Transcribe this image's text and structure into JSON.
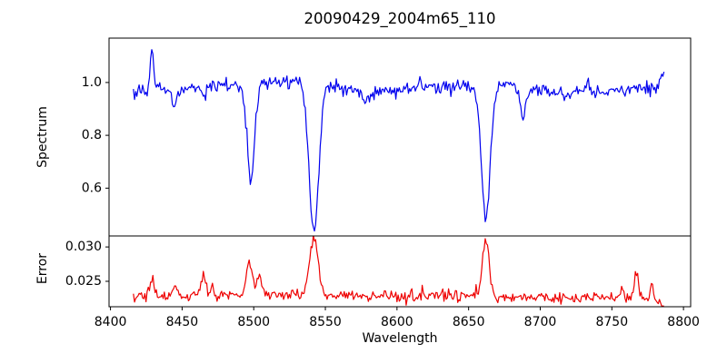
{
  "figure": {
    "title": "20090429_2004m65_110",
    "background": "#ffffff",
    "text_color": "#000000",
    "spine_color": "#000000"
  },
  "axis_x": {
    "label": "Wavelength",
    "min": 8399,
    "max": 8805,
    "ticks": [
      8400,
      8450,
      8500,
      8550,
      8600,
      8650,
      8700,
      8750,
      8800
    ],
    "tick_labels": [
      "8400",
      "8450",
      "8500",
      "8550",
      "8600",
      "8650",
      "8700",
      "8750",
      "8800"
    ]
  },
  "chart_data": [
    {
      "type": "line",
      "name": "spectrum",
      "ylabel": "Spectrum",
      "color": "#0000ee",
      "ylim": [
        0.419,
        1.168
      ],
      "yticks": [
        0.6,
        0.8,
        1.0
      ],
      "ytick_labels": [
        "0.6",
        "0.8",
        "1.0"
      ],
      "x_start": 8416,
      "x_end": 8787,
      "x_step": 0.8,
      "noise_sigma": 0.013,
      "seed": 7,
      "continuum": [
        [
          8416,
          0.968
        ],
        [
          8435,
          0.972
        ],
        [
          8460,
          0.978
        ],
        [
          8490,
          0.985
        ],
        [
          8515,
          1.0
        ],
        [
          8530,
          1.005
        ],
        [
          8555,
          0.985
        ],
        [
          8580,
          0.962
        ],
        [
          8605,
          0.975
        ],
        [
          8640,
          0.983
        ],
        [
          8665,
          0.985
        ],
        [
          8690,
          0.975
        ],
        [
          8715,
          0.962
        ],
        [
          8740,
          0.962
        ],
        [
          8765,
          0.97
        ],
        [
          8787,
          0.98
        ]
      ],
      "features": [
        {
          "center": 8429,
          "amp": 0.16,
          "width": 1.2
        },
        {
          "center": 8445,
          "amp": -0.065,
          "width": 1.5
        },
        {
          "center": 8465,
          "amp": -0.032,
          "width": 1.5
        },
        {
          "center": 8498,
          "amp": -0.345,
          "width": 2.6
        },
        {
          "center": 8542,
          "amp": -0.55,
          "width": 3.4
        },
        {
          "center": 8578,
          "amp": -0.035,
          "width": 2.0
        },
        {
          "center": 8616,
          "amp": 0.04,
          "width": 1.0
        },
        {
          "center": 8662,
          "amp": -0.5,
          "width": 3.0
        },
        {
          "center": 8688,
          "amp": -0.105,
          "width": 2.0
        },
        {
          "center": 8733,
          "amp": 0.05,
          "width": 1.0
        },
        {
          "center": 8785,
          "amp": 0.06,
          "width": 1.2
        }
      ]
    },
    {
      "type": "line",
      "name": "error",
      "ylabel": "Error",
      "color": "#ee0000",
      "ylim": [
        0.0213,
        0.0316
      ],
      "yticks": [
        0.025,
        0.03
      ],
      "ytick_labels": [
        "0.025",
        "0.030"
      ],
      "x_start": 8416,
      "x_end": 8787,
      "x_step": 0.8,
      "noise_sigma": 0.00042,
      "seed": 13,
      "continuum": [
        [
          8416,
          0.0228
        ],
        [
          8460,
          0.0229
        ],
        [
          8500,
          0.0231
        ],
        [
          8540,
          0.0231
        ],
        [
          8580,
          0.0229
        ],
        [
          8620,
          0.023
        ],
        [
          8660,
          0.0229
        ],
        [
          8700,
          0.0226
        ],
        [
          8740,
          0.0226
        ],
        [
          8770,
          0.0228
        ],
        [
          8787,
          0.0218
        ]
      ],
      "features": [
        {
          "center": 8429,
          "amp": 0.0024,
          "width": 1.5
        },
        {
          "center": 8445,
          "amp": 0.0018,
          "width": 1.5
        },
        {
          "center": 8465,
          "amp": 0.0032,
          "width": 1.5
        },
        {
          "center": 8471,
          "amp": 0.0015,
          "width": 1.0
        },
        {
          "center": 8497,
          "amp": 0.0046,
          "width": 2.0
        },
        {
          "center": 8504,
          "amp": 0.0028,
          "width": 1.5
        },
        {
          "center": 8542,
          "amp": 0.0082,
          "width": 3.0
        },
        {
          "center": 8662,
          "amp": 0.0084,
          "width": 2.2
        },
        {
          "center": 8757,
          "amp": 0.0015,
          "width": 1.0
        },
        {
          "center": 8767,
          "amp": 0.003,
          "width": 1.2
        },
        {
          "center": 8778,
          "amp": 0.0022,
          "width": 1.2
        },
        {
          "center": 8787,
          "amp": -0.001,
          "width": 1.5
        }
      ]
    }
  ]
}
